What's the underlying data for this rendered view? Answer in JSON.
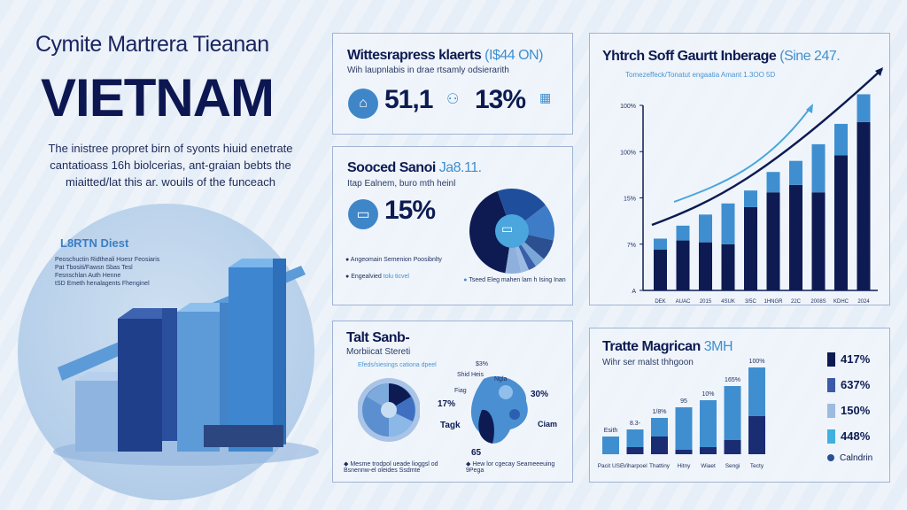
{
  "left": {
    "subtitle": "Cymite Martrera Tieanan",
    "title": "VIETNAM",
    "paragraph": [
      "The inistree propret birn of syonts hiuid enetrate",
      "cantatioass 16h biolcerias, ant-graian bebts the",
      "miaitted/lat this ar. wouils of the funceach"
    ],
    "inset_title": "L8RTN Diest",
    "inset_lines": [
      "Peoschuctin Ridtheali Hoesr Feosiaris",
      "Pat Tbositi/Fawsn Sbas Tesl",
      "Fesnschlan Auth Henne",
      "tSD Emeth henalagents Fhenginel"
    ]
  },
  "panel1": {
    "title": "Wittesrapress klaerts",
    "title_accent": "(I$44 ON)",
    "subtitle": "Wih laupnlabis in drae rtsamly odsierarith",
    "stat1": "51,1",
    "stat2": "13%",
    "icon": "home-icon"
  },
  "panel2": {
    "title": "Sooced Sanoi",
    "title_accent": "Ja8.11.",
    "subtitle": "Itap Ealnem, buro mth heinl",
    "stat": "15%",
    "icon": "sofa-icon",
    "bullets": [
      "Angeomain Semenion Poosibnlty",
      "Engealvied"
    ],
    "bullet_accent": "tolu ticvel",
    "donut_note": "Tseed Eleg mahen lam h Ising Inan",
    "donut": {
      "values": [
        42,
        20,
        14,
        8,
        4,
        3,
        3,
        6
      ],
      "colors": [
        "#0d1b52",
        "#1f4f9c",
        "#3e7cc7",
        "#2c4f92",
        "#7aa6d8",
        "#3a5fa8",
        "#9cbbe3",
        "#8fb0dc"
      ]
    }
  },
  "panel3": {
    "title": "Yhtrch Soff Gaurtt Inberage",
    "title_accent": "(Sine 247.",
    "subtitle": "Tomezeffeck/Tonatut engaatia Amant 1.3OO 5D",
    "chart_data": {
      "type": "bar",
      "stacked": true,
      "ylim": [
        0,
        110
      ],
      "yticks": [
        "A",
        "7%",
        "15%",
        "100%",
        "100%"
      ],
      "categories": [
        "DEK",
        "AUAC",
        "2015",
        "4SUK",
        "3/5C",
        "1HNGR",
        "22C",
        "2008S",
        "KDHC",
        "2024"
      ],
      "series": [
        {
          "values": [
            22,
            27,
            26,
            25,
            45,
            53,
            57,
            53,
            73,
            91
          ],
          "color": "#0d1b52"
        },
        {
          "values": [
            6,
            8,
            15,
            22,
            9,
            11,
            13,
            26,
            17,
            15
          ],
          "color": "#3f8fd0"
        }
      ],
      "trend_arrows": true,
      "grid": false
    }
  },
  "panel4": {
    "title": "Talt Sanb-",
    "subtitle": "Morbiicat Stereti",
    "pie_caption": "Efeds/siesings cationa dpeel",
    "map_labels": [
      "$3%",
      "Shid Heis",
      "Ngla",
      "Fiag",
      "17%",
      "30%",
      "Tagk",
      "Ciam",
      "65"
    ],
    "notes": [
      "Mesme trodpol ueade lioggsl od Bsnennw-el oleides Ssdmte",
      "Hew lor cgecay Seameeeuing 9Pega"
    ]
  },
  "panel5": {
    "title": "Tratte Magrican",
    "title_accent": "3MH",
    "subtitle": "Wihr ser malst thhgoon",
    "chart_data": {
      "type": "bar",
      "stacked": true,
      "ylim": [
        0,
        100
      ],
      "categories": [
        "Pacit USE",
        "Viharpoel",
        "Thattiny",
        "Hitny",
        "Wiaet",
        "Sengi",
        "Tecty"
      ],
      "data_labels": [
        "Esith",
        "8.3-",
        "1/8%",
        "95",
        "10%",
        "165%",
        "100%"
      ],
      "series": [
        {
          "values": [
            0,
            8,
            20,
            5,
            8,
            16,
            43
          ],
          "color": "#1a2d73"
        },
        {
          "values": [
            20,
            20,
            21,
            48,
            53,
            61,
            55
          ],
          "color": "#3f8fd0"
        }
      ]
    },
    "legend": [
      {
        "label": "417%",
        "color": "#0d1b52"
      },
      {
        "label": "637%",
        "color": "#3c5aa8"
      },
      {
        "label": "150%",
        "color": "#9dbbe0"
      },
      {
        "label": "448%",
        "color": "#3fb0e0"
      },
      {
        "label": "Calndrin",
        "color": "#2c4f92"
      }
    ]
  }
}
